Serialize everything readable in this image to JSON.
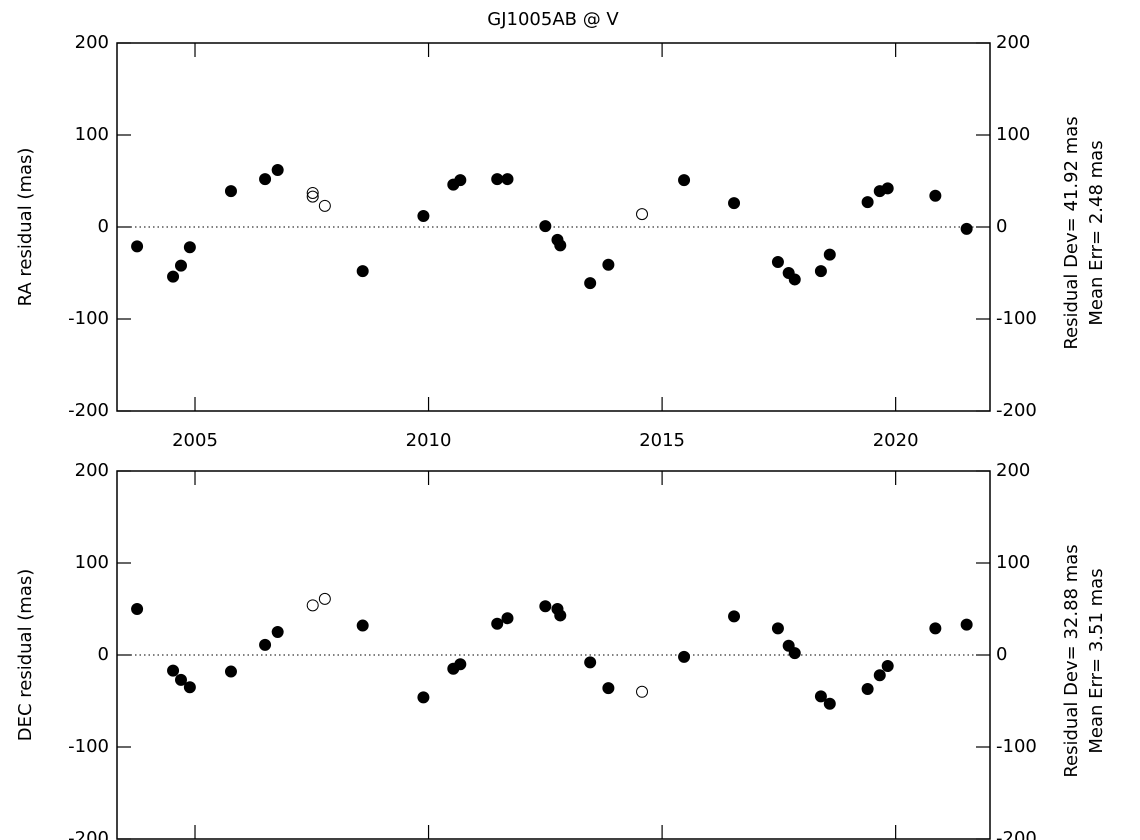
{
  "chart_data": [
    {
      "type": "scatter",
      "title": "GJ1005AB @ V",
      "ylabel": "RA residual (mas)",
      "annotations": [
        "Residual Dev= 41.92 mas",
        "Mean Err= 2.48 mas"
      ],
      "xlim": [
        2003.33,
        2022.02
      ],
      "xticks": [
        2005,
        2010,
        2015,
        2020
      ],
      "xtick_labels": true,
      "ylim": [
        -200,
        200
      ],
      "yticks": [
        -200,
        -100,
        0,
        100,
        200
      ],
      "zero_line": true,
      "color": "#000000",
      "series": [
        {
          "marker": "filled",
          "x": [
            2003.76,
            2004.53,
            2004.7,
            2004.89,
            2005.77,
            2006.5,
            2006.77,
            2008.59,
            2009.89,
            2010.53,
            2010.68,
            2011.47,
            2011.69,
            2012.5,
            2012.76,
            2012.82,
            2013.46,
            2013.85,
            2015.47,
            2016.54,
            2017.48,
            2017.71,
            2017.84,
            2018.4,
            2018.59,
            2019.4,
            2019.66,
            2019.83,
            2020.85,
            2021.52
          ],
          "values": [
            -21,
            -54,
            -42,
            -22,
            39,
            52,
            62,
            -48,
            12,
            46,
            51,
            52,
            52,
            1,
            -14,
            -20,
            -61,
            -41,
            51,
            26,
            -38,
            -50,
            -57,
            -48,
            -30,
            27,
            39,
            42,
            34,
            -2
          ]
        },
        {
          "marker": "open",
          "x": [
            2007.52,
            2007.52,
            2007.78,
            2014.57
          ],
          "values": [
            37,
            33,
            23,
            14
          ]
        }
      ]
    },
    {
      "type": "scatter",
      "ylabel": "DEC residual (mas)",
      "annotations": [
        "Residual Dev= 32.88 mas",
        "Mean Err= 3.51 mas"
      ],
      "xlim": [
        2003.33,
        2022.02
      ],
      "xticks": [
        2005,
        2010,
        2015,
        2020
      ],
      "xtick_labels": false,
      "ylim": [
        -200,
        200
      ],
      "yticks": [
        -200,
        -100,
        0,
        100,
        200
      ],
      "zero_line": true,
      "color": "#000000",
      "series": [
        {
          "marker": "filled",
          "x": [
            2003.76,
            2004.53,
            2004.7,
            2004.89,
            2005.77,
            2006.5,
            2006.77,
            2008.59,
            2009.89,
            2010.53,
            2010.68,
            2011.47,
            2011.69,
            2012.5,
            2012.76,
            2012.82,
            2013.46,
            2013.85,
            2015.47,
            2016.54,
            2017.48,
            2017.71,
            2017.84,
            2018.4,
            2018.59,
            2019.4,
            2019.66,
            2019.83,
            2020.85,
            2021.52
          ],
          "values": [
            50,
            -17,
            -27,
            -35,
            -18,
            11,
            25,
            32,
            -46,
            -15,
            -10,
            34,
            40,
            53,
            50,
            43,
            -8,
            -36,
            -2,
            42,
            29,
            10,
            2,
            -45,
            -53,
            -37,
            -22,
            -12,
            29,
            33
          ]
        },
        {
          "marker": "open",
          "x": [
            2007.52,
            2007.78,
            2014.57
          ],
          "values": [
            54,
            61,
            -40
          ]
        }
      ]
    }
  ]
}
